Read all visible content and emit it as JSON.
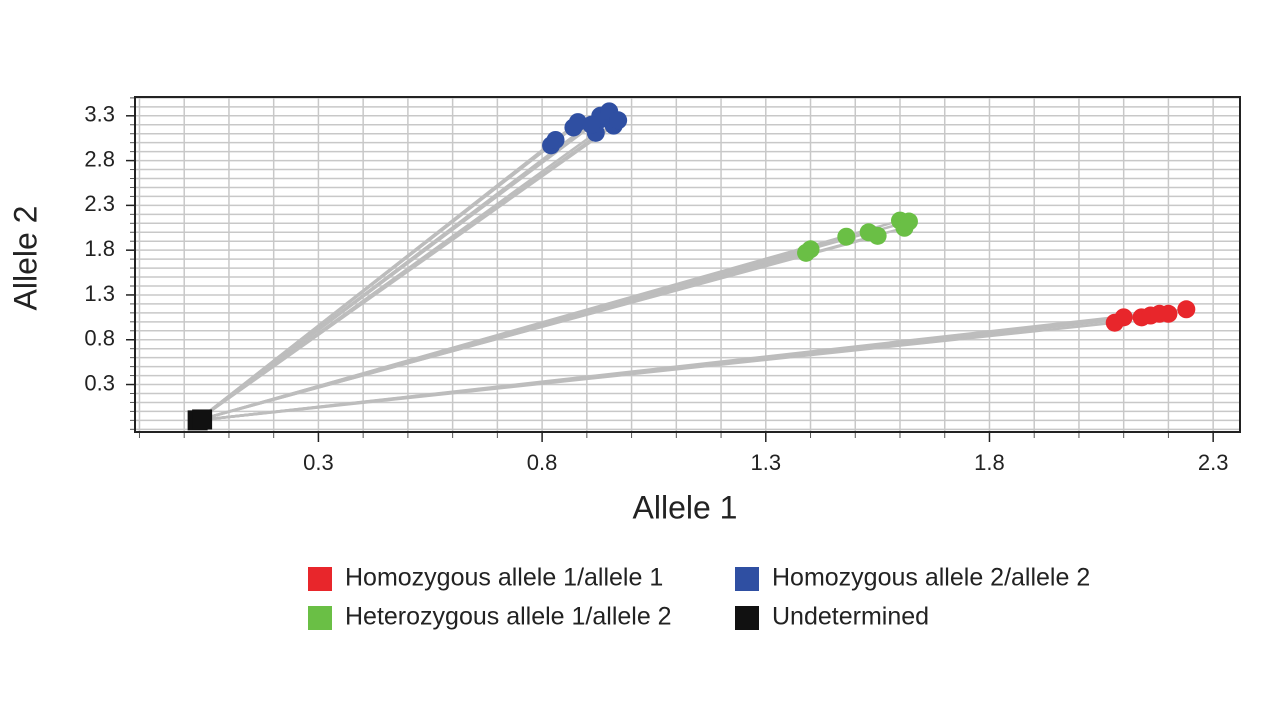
{
  "chart_data": {
    "type": "scatter",
    "x_label": "Allele 1",
    "y_label": "Allele 2",
    "xlim": [
      -0.11,
      2.36
    ],
    "ylim": [
      -0.23,
      3.51
    ],
    "xticks": [
      0.3,
      0.8,
      1.3,
      1.8,
      2.3
    ],
    "yticks": [
      0.3,
      0.8,
      1.3,
      1.8,
      2.3,
      2.8,
      3.3
    ],
    "xminorticks": [
      -0.1,
      0,
      0.1,
      0.2,
      0.3,
      0.4,
      0.5,
      0.6,
      0.7,
      0.8,
      0.9,
      1,
      1.1,
      1.2,
      1.3,
      1.4,
      1.5,
      1.6,
      1.7,
      1.8,
      1.9,
      2,
      2.1,
      2.2,
      2.3
    ],
    "yminorticks": [
      -0.2,
      -0.1,
      0,
      0.1,
      0.2,
      0.3,
      0.4,
      0.5,
      0.6,
      0.7,
      0.8,
      0.9,
      1,
      1.1,
      1.2,
      1.3,
      1.4,
      1.5,
      1.6,
      1.7,
      1.8,
      1.9,
      2,
      2.1,
      2.2,
      2.3,
      2.4,
      2.5,
      2.6,
      2.7,
      2.8,
      2.9,
      3,
      3.1,
      3.2,
      3.3,
      3.4,
      3.5
    ],
    "grid": true,
    "legend": "bottom",
    "series": [
      {
        "name": "Homozygous allele 1/allele 1",
        "color": "#e8262b",
        "marker": "circle",
        "x": [
          2.08,
          2.1,
          2.14,
          2.16,
          2.18,
          2.2,
          2.24
        ],
        "values": [
          0.99,
          1.05,
          1.05,
          1.07,
          1.09,
          1.09,
          1.14
        ]
      },
      {
        "name": "Homozygous allele 2/allele 2",
        "color": "#2f4fa2",
        "marker": "circle",
        "x": [
          0.82,
          0.83,
          0.87,
          0.88,
          0.92,
          0.93,
          0.93,
          0.95,
          0.96,
          0.97,
          0.91
        ],
        "values": [
          2.97,
          3.03,
          3.17,
          3.23,
          3.11,
          3.26,
          3.3,
          3.35,
          3.19,
          3.25,
          3.2
        ]
      },
      {
        "name": "Heterozygous allele 1/allele 2",
        "color": "#6abf45",
        "marker": "circle",
        "x": [
          1.39,
          1.4,
          1.48,
          1.53,
          1.55,
          1.6,
          1.61,
          1.62
        ],
        "values": [
          1.77,
          1.81,
          1.95,
          2,
          1.96,
          2.13,
          2.05,
          2.12
        ]
      },
      {
        "name": "Undetermined",
        "color": "#111111",
        "marker": "square",
        "x": [
          0.03,
          0.04
        ],
        "values": [
          -0.1,
          -0.09
        ]
      }
    ]
  }
}
